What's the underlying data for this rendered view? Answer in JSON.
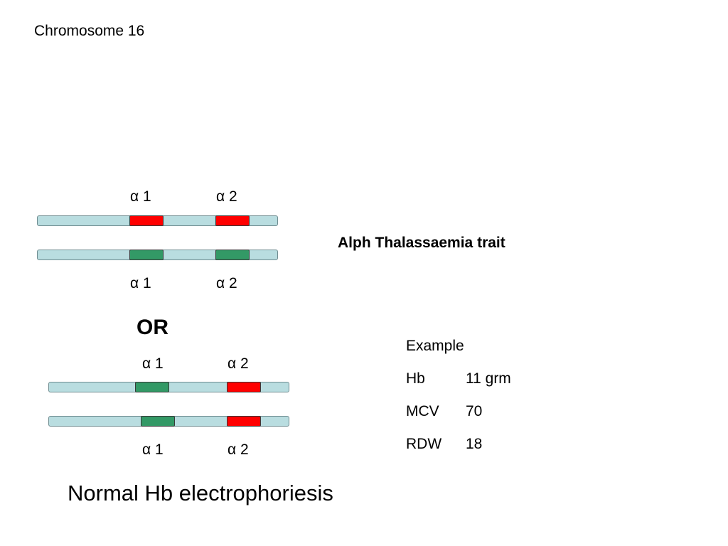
{
  "title": "Chromosome 16",
  "labels": {
    "alpha1": "α 1",
    "alpha2": "α 2"
  },
  "trait": "Alph Thalassaemia trait",
  "or": "OR",
  "example": {
    "heading": "Example",
    "rows": [
      {
        "key": "Hb",
        "value": "11 grm"
      },
      {
        "key": "MCV",
        "value": "70"
      },
      {
        "key": "RDW",
        "value": "18"
      }
    ]
  },
  "footer": "Normal Hb electrophoriesis",
  "colors": {
    "chromosome": "#b9dde0",
    "deleted_gene": "#ff0000",
    "normal_gene": "#339966"
  },
  "diagrams": [
    {
      "chromosomes": [
        {
          "genes": [
            "deleted",
            "deleted"
          ]
        },
        {
          "genes": [
            "normal",
            "normal"
          ]
        }
      ]
    },
    {
      "chromosomes": [
        {
          "genes": [
            "normal",
            "deleted"
          ]
        },
        {
          "genes": [
            "normal",
            "deleted"
          ]
        }
      ]
    }
  ]
}
